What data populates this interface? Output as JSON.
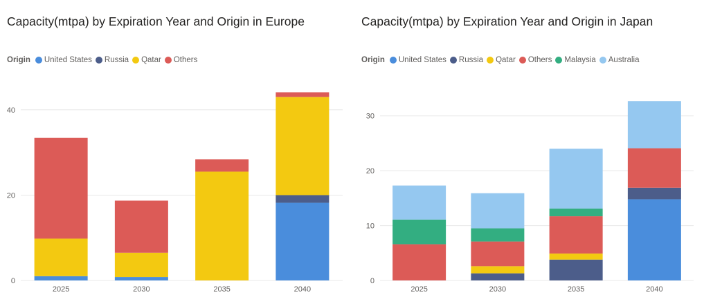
{
  "colors": {
    "United States": "#4a8ddc",
    "Russia": "#4c5d8a",
    "Qatar": "#f3c911",
    "Others": "#dc5b57",
    "Malaysia": "#33ae81",
    "Australia": "#95c8f0"
  },
  "chart_data": [
    {
      "type": "bar",
      "stacked": true,
      "title": "Capacity(mtpa) by Expiration Year and Origin in Europe",
      "legend_title": "Origin",
      "legend_position": "top-left",
      "grid": true,
      "categories": [
        "2025",
        "2030",
        "2035",
        "2040"
      ],
      "ylim": [
        0,
        45
      ],
      "yticks": [
        0,
        20,
        40
      ],
      "series": [
        {
          "name": "United States",
          "values": [
            1,
            0.8,
            0,
            18.2
          ]
        },
        {
          "name": "Russia",
          "values": [
            0,
            0,
            0,
            1.8
          ]
        },
        {
          "name": "Qatar",
          "values": [
            8.8,
            5.7,
            25.5,
            23
          ]
        },
        {
          "name": "Others",
          "values": [
            23.6,
            12.2,
            2.9,
            1.1
          ]
        }
      ]
    },
    {
      "type": "bar",
      "stacked": true,
      "title": "Capacity(mtpa) by Expiration Year and Origin in Japan",
      "legend_title": "Origin",
      "legend_position": "top-left",
      "grid": true,
      "categories": [
        "2025",
        "2030",
        "2035",
        "2040"
      ],
      "ylim": [
        0,
        35
      ],
      "yticks": [
        0,
        10,
        20,
        30
      ],
      "series": [
        {
          "name": "United States",
          "values": [
            0,
            0,
            0,
            14.8
          ]
        },
        {
          "name": "Russia",
          "values": [
            0,
            1.3,
            3.8,
            2.1
          ]
        },
        {
          "name": "Qatar",
          "values": [
            0,
            1.3,
            1.1,
            0
          ]
        },
        {
          "name": "Others",
          "values": [
            6.6,
            4.5,
            6.8,
            7.2
          ]
        },
        {
          "name": "Malaysia",
          "values": [
            4.5,
            2.4,
            1.4,
            0
          ]
        },
        {
          "name": "Australia",
          "values": [
            6.2,
            6.4,
            10.9,
            8.6
          ]
        }
      ]
    }
  ]
}
